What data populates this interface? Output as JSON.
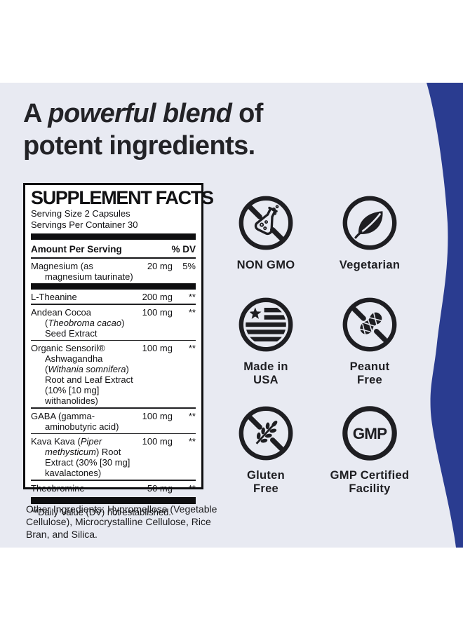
{
  "colors": {
    "background_band": "#e8eaf2",
    "accent_blue": "#2a3c90",
    "icon_black": "#1e1e22",
    "headline_dark": "#232327"
  },
  "headline": {
    "line1_prefix": "A ",
    "line1_emphasis": "powerful blend",
    "line1_suffix": " of",
    "line2": "potent ingredients."
  },
  "supplement_facts": {
    "title": "SUPPLEMENT FACTS",
    "serving_size": "Serving Size 2 Capsules",
    "servings_per_container": "Servings Per Container 30",
    "amount_header": "Amount Per Serving",
    "dv_header": "% DV",
    "rows": [
      {
        "name": [
          {
            "t": "Magnesium (as magnesium taurinate)"
          }
        ],
        "amount": "20 mg",
        "dv": "5%",
        "divider_after": "thick"
      },
      {
        "name": [
          {
            "t": "L-Theanine"
          }
        ],
        "amount": "200 mg",
        "dv": "**",
        "divider_after": "thin"
      },
      {
        "name": [
          {
            "t": "Andean Cocoa ("
          },
          {
            "t": "Theobroma cacao",
            "i": true
          },
          {
            "t": ") Seed Extract"
          }
        ],
        "amount": "100 mg",
        "dv": "**",
        "divider_after": "thin"
      },
      {
        "name": [
          {
            "t": "Organic Sensoril® Ashwagandha ("
          },
          {
            "t": "Withania somnifera",
            "i": true
          },
          {
            "t": ") Root and Leaf Extract (10% [10 mg] withanolides)"
          }
        ],
        "amount": "100 mg",
        "dv": "**",
        "divider_after": "thin"
      },
      {
        "name": [
          {
            "t": "GABA (gamma-aminobutyric acid)"
          }
        ],
        "amount": "100 mg",
        "dv": "**",
        "divider_after": "thin"
      },
      {
        "name": [
          {
            "t": "Kava Kava ("
          },
          {
            "t": "Piper methysticum",
            "i": true
          },
          {
            "t": ") Root Extract (30% [30 mg] kavalactones)"
          }
        ],
        "amount": "100 mg",
        "dv": "**",
        "divider_after": "thin"
      },
      {
        "name": [
          {
            "t": "Theobromine"
          }
        ],
        "amount": "50 mg",
        "dv": "**",
        "divider_after": "none"
      }
    ],
    "footnote": "**Daily Value (DV) not established."
  },
  "other_ingredients": "Other Ingredients: Hypromellose (Vegetable Cellulose), Microcrystalline Cellulose, Rice Bran, and Silica.",
  "badges": [
    {
      "label": "NON GMO"
    },
    {
      "label": "Vegetarian"
    },
    {
      "label": "Made in\nUSA"
    },
    {
      "label": "Peanut\nFree"
    },
    {
      "label": "Gluten\nFree"
    },
    {
      "label": "GMP Certified\nFacility",
      "icon_text": "GMP"
    }
  ]
}
